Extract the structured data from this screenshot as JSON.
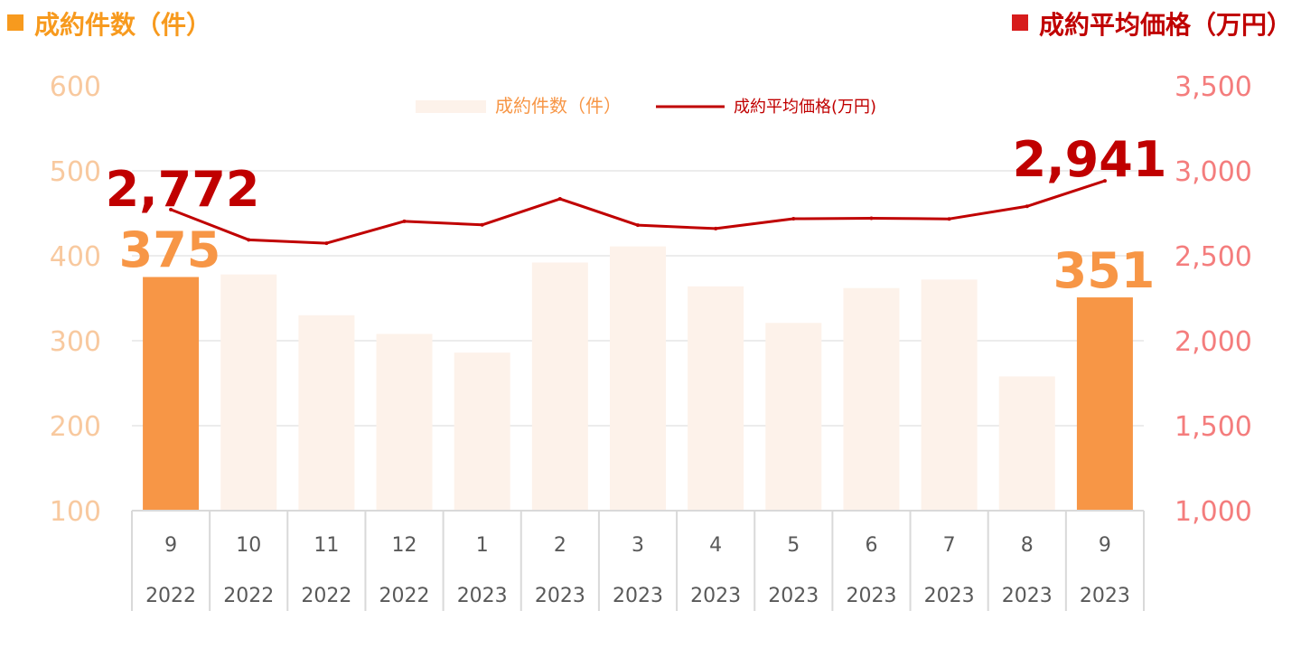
{
  "headers": {
    "left": "成約件数（件）",
    "right": "成約平均価格（万円）"
  },
  "colors": {
    "bar_highlight": "#f79646",
    "bar_normal": "#fdf2ea",
    "line": "#c00000",
    "left_axis": "#f8c99f",
    "right_axis": "#f47d7d",
    "left_header": "#f79a1e",
    "right_header": "#c00000",
    "gridline": "#d9d9d9",
    "category_text": "#595959"
  },
  "chart_data": {
    "type": "bar",
    "categories": [
      "9",
      "10",
      "11",
      "12",
      "1",
      "2",
      "3",
      "4",
      "5",
      "6",
      "7",
      "8",
      "9"
    ],
    "category_years": [
      "2022",
      "2022",
      "2022",
      "2022",
      "2023",
      "2023",
      "2023",
      "2023",
      "2023",
      "2023",
      "2023",
      "2023",
      "2023"
    ],
    "series": [
      {
        "name": "成約件数(件)",
        "type": "bar",
        "axis": "left",
        "values": [
          375,
          378,
          330,
          308,
          286,
          392,
          411,
          364,
          321,
          362,
          372,
          258,
          351
        ],
        "highlight": [
          true,
          false,
          false,
          false,
          false,
          false,
          false,
          false,
          false,
          false,
          false,
          false,
          true
        ]
      },
      {
        "name": "成約平均価格(万円)",
        "type": "line",
        "axis": "right",
        "values": [
          2772,
          2594,
          2574,
          2703,
          2682,
          2835,
          2680,
          2660,
          2718,
          2721,
          2717,
          2791,
          2941
        ]
      }
    ],
    "left_axis": {
      "ylim": [
        100,
        600
      ],
      "ticks": [
        "100",
        "200",
        "300",
        "400",
        "500",
        "600"
      ]
    },
    "right_axis": {
      "ylim": [
        1000,
        3500
      ],
      "ticks": [
        "1,000",
        "1,500",
        "2,000",
        "2,500",
        "3,000",
        "3,500"
      ]
    },
    "annotations": {
      "first_bar": "375",
      "last_bar": "351",
      "first_line": "2,772",
      "last_line": "2,941"
    },
    "legend_position": "top",
    "grid": true
  }
}
